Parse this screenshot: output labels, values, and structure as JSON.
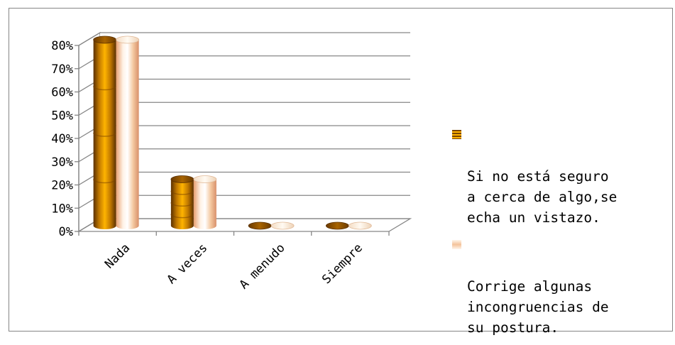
{
  "chart_data": {
    "type": "bar",
    "style": "3d-cylinder",
    "categories": [
      "Nada",
      "A veces",
      "A menudo",
      "Siempre"
    ],
    "series": [
      {
        "name": "Si no está seguro\na cerca de algo,se\necha un vistazo.",
        "values": [
          80,
          20,
          0,
          0
        ],
        "color": "#c98200"
      },
      {
        "name": "Corrige algunas\nincongruencias de\nsu postura.",
        "values": [
          80,
          20,
          0,
          0
        ],
        "color": "#f5c9a4"
      }
    ],
    "y_tick_labels": [
      "0%",
      "10%",
      "20%",
      "30%",
      "40%",
      "50%",
      "60%",
      "70%",
      "80%"
    ],
    "ylim": [
      0,
      80
    ],
    "grid": true,
    "legend_position": "right"
  }
}
